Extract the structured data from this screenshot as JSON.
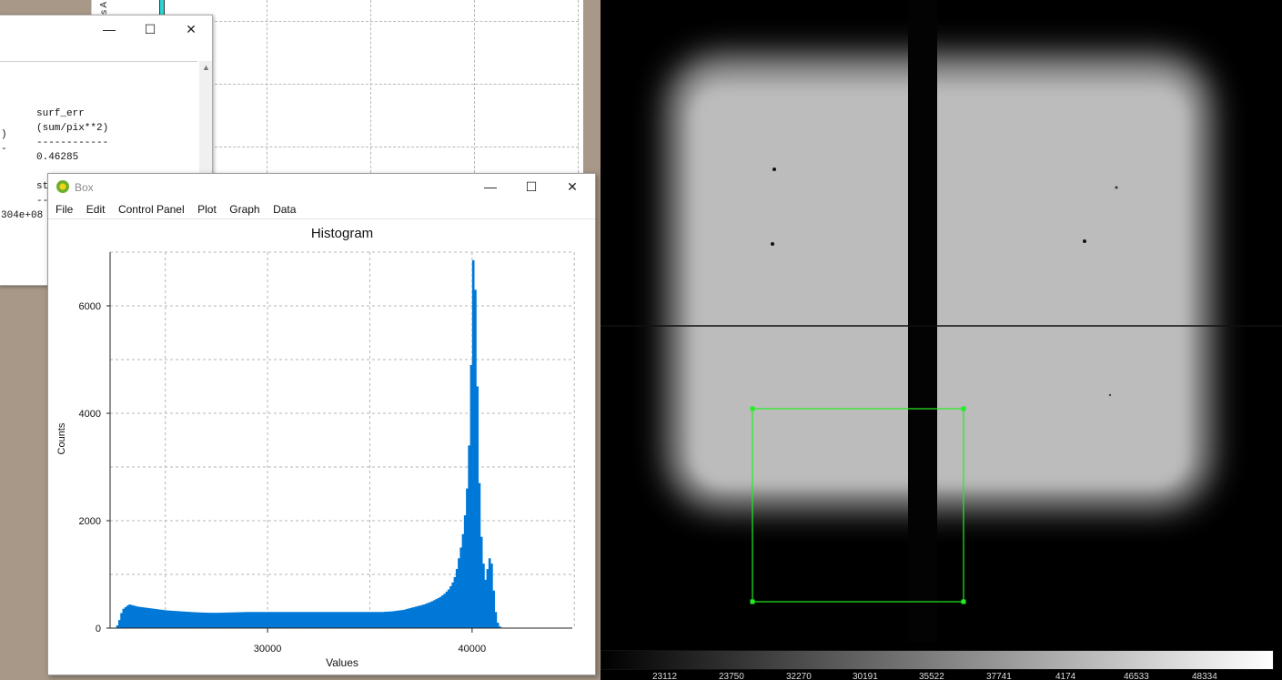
{
  "background_plot_window": {
    "side_label": "s A"
  },
  "stats_window": {
    "controls": {
      "minimize": "—",
      "maximize": "☐",
      "close": "✕"
    },
    "col_partial": {
      "header_tail": ")",
      "dash": "-"
    },
    "surf_err": {
      "header": "surf_err",
      "unit": "(sum/pix**2)",
      "dashes": "------------",
      "value": "0.46285"
    },
    "std_fragment": {
      "header": "st",
      "dashes": "--",
      "value": "304e+08"
    }
  },
  "histogram_window": {
    "app_title": "Box",
    "controls": {
      "minimize": "—",
      "maximize": "☐",
      "close": "✕"
    },
    "menu": [
      "File",
      "Edit",
      "Control Panel",
      "Plot",
      "Graph",
      "Data"
    ]
  },
  "chart_data": {
    "type": "bar",
    "title": "Histogram",
    "xlabel": "Values",
    "ylabel": "Counts",
    "xlim": [
      22300,
      44900
    ],
    "ylim": [
      0,
      7000
    ],
    "x_ticks": [
      30000,
      40000
    ],
    "y_ticks": [
      0,
      2000,
      4000,
      6000
    ],
    "grid": true,
    "bar_color": "#0078d7",
    "bin_start": 22400,
    "bin_width": 100,
    "counts": [
      0,
      0,
      50,
      150,
      280,
      360,
      390,
      420,
      440,
      430,
      420,
      410,
      400,
      395,
      390,
      385,
      380,
      375,
      370,
      365,
      360,
      355,
      350,
      345,
      340,
      335,
      330,
      328,
      325,
      322,
      320,
      318,
      315,
      312,
      310,
      308,
      305,
      303,
      300,
      298,
      296,
      294,
      292,
      290,
      289,
      288,
      287,
      286,
      285,
      285,
      285,
      285,
      286,
      287,
      288,
      289,
      290,
      291,
      292,
      293,
      294,
      295,
      296,
      297,
      298,
      300,
      300,
      300,
      300,
      300,
      300,
      300,
      300,
      300,
      300,
      300,
      300,
      300,
      300,
      300,
      300,
      300,
      300,
      300,
      300,
      300,
      300,
      300,
      300,
      300,
      300,
      300,
      300,
      300,
      300,
      300,
      300,
      300,
      300,
      300,
      300,
      300,
      300,
      300,
      300,
      300,
      300,
      300,
      300,
      300,
      300,
      300,
      300,
      300,
      300,
      300,
      300,
      300,
      300,
      300,
      300,
      300,
      300,
      300,
      300,
      300,
      300,
      300,
      300,
      300,
      300,
      300,
      300,
      305,
      305,
      310,
      310,
      315,
      320,
      325,
      330,
      335,
      340,
      350,
      360,
      370,
      380,
      390,
      400,
      410,
      420,
      430,
      440,
      455,
      470,
      485,
      500,
      520,
      540,
      560,
      580,
      610,
      640,
      680,
      720,
      780,
      850,
      950,
      1100,
      1300,
      1500,
      1750,
      2100,
      2600,
      3400,
      4900,
      6850,
      6300,
      4500,
      2700,
      1700,
      1200,
      900,
      1100,
      1300,
      1200,
      700,
      300,
      100,
      30,
      10,
      0,
      0
    ]
  },
  "image_viewer": {
    "colorbar_labels": [
      "23112",
      "23750",
      "32270",
      "30191",
      "35522",
      "37741",
      "4174",
      "46533",
      "48334"
    ]
  }
}
